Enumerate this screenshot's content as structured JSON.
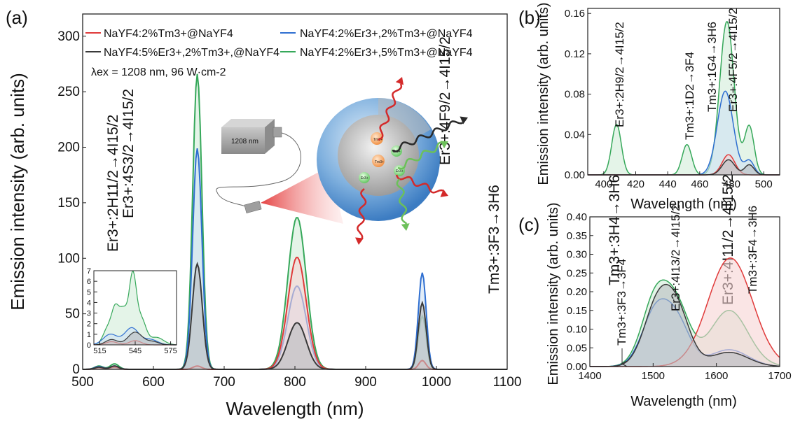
{
  "figure": {
    "panels": [
      {
        "id": "a",
        "label": "(a)"
      },
      {
        "id": "b",
        "label": "(b)"
      },
      {
        "id": "c",
        "label": "(c)"
      }
    ],
    "excitation_text": "λex = 1208 nm, 96 W·cm-2",
    "laser_label": "1208 nm",
    "ion_labels": [
      "Tm3+",
      "Er3+"
    ]
  },
  "series_meta": [
    {
      "key": "s1",
      "name": "NaYF4:2%Tm3+@NaYF4",
      "color": "#e03a3a",
      "fill": "#f7d3d3"
    },
    {
      "key": "s2",
      "name": "NaYF4:2%Er3+,2%Tm3+@NaYF4",
      "color": "#2f6fd1",
      "fill": "#cfe1f4"
    },
    {
      "key": "s3",
      "name": "NaYF4:5%Er3+,2%Tm3+,@NaYF4",
      "color": "#3a3a3a",
      "fill": "#b9bcc0"
    },
    {
      "key": "s4",
      "name": "NaYF4:2%Er3+,5%Tm3+@NaYF4",
      "color": "#36a85a",
      "fill": "#d2ecd8"
    }
  ],
  "chart_data": [
    {
      "panel": "a",
      "type": "area",
      "xlabel": "Wavelength (nm)",
      "ylabel": "Emission intensity (arb. units)",
      "xlim": [
        500,
        1100
      ],
      "ylim": [
        0,
        320
      ],
      "xticks": [
        500,
        600,
        700,
        800,
        900,
        1000,
        1100
      ],
      "yticks": [
        0,
        50,
        100,
        150,
        200,
        250,
        300
      ],
      "peaks": {
        "s1": [
          [
            523,
            1.5,
            6
          ],
          [
            545,
            2,
            6
          ],
          [
            662,
            3,
            6
          ],
          [
            803,
            101,
            13
          ],
          [
            980,
            8,
            5
          ]
        ],
        "s2": [
          [
            523,
            2.5,
            6
          ],
          [
            545,
            3,
            6
          ],
          [
            662,
            199,
            6.5
          ],
          [
            803,
            75,
            13
          ],
          [
            980,
            87,
            5.5
          ]
        ],
        "s3": [
          [
            523,
            2,
            6
          ],
          [
            545,
            3,
            6
          ],
          [
            662,
            95,
            7
          ],
          [
            803,
            42,
            13
          ],
          [
            980,
            60,
            5.5
          ]
        ],
        "s4": [
          [
            523,
            3,
            6
          ],
          [
            545,
            5,
            6
          ],
          [
            662,
            266,
            6.5
          ],
          [
            803,
            137,
            13
          ],
          [
            980,
            48,
            5.5
          ]
        ]
      },
      "annotations": [
        "Er3+:4F9/2→4I15/2",
        "Tm3+:3F3→3H6",
        "Tm3+:3H4→3H6",
        "Er3+:4I11/2→4I15/2",
        "Er3+:2H11/2→4I15/2",
        "Er3+:4S3/2→4I15/2"
      ]
    },
    {
      "panel": "a-inset",
      "type": "area",
      "xlim": [
        510,
        580
      ],
      "ylim": [
        0,
        7
      ],
      "xticks": [
        515,
        545,
        575
      ],
      "yticks": [
        0,
        1,
        2,
        3,
        4,
        5,
        6,
        7
      ],
      "peaks": {
        "s1": [
          [
            525,
            0.3,
            5
          ],
          [
            545,
            0.4,
            5
          ]
        ],
        "s2": [
          [
            524,
            1.0,
            6
          ],
          [
            542,
            1.6,
            6
          ],
          [
            558,
            0.5,
            6
          ]
        ],
        "s3": [
          [
            525,
            0.5,
            5
          ],
          [
            545,
            1.2,
            6
          ],
          [
            560,
            0.3,
            5
          ]
        ],
        "s4": [
          [
            522,
            1.6,
            4
          ],
          [
            528,
            2.6,
            3
          ],
          [
            535,
            3.3,
            4
          ],
          [
            543,
            6.0,
            3
          ],
          [
            550,
            2.4,
            4
          ],
          [
            563,
            0.7,
            6
          ]
        ]
      }
    },
    {
      "panel": "b",
      "type": "area",
      "xlabel": "Wavelength (nm)",
      "ylabel": "Emission intensity (arb. units)",
      "xlim": [
        390,
        510
      ],
      "ylim": [
        0,
        0.165
      ],
      "xticks": [
        400,
        420,
        440,
        460,
        480,
        500
      ],
      "yticks": [
        0.0,
        0.04,
        0.08,
        0.12,
        0.16
      ],
      "peaks": {
        "s1": [
          [
            478,
            0.02,
            4
          ]
        ],
        "s2": [
          [
            476,
            0.083,
            5
          ],
          [
            491,
            0.014,
            3
          ]
        ],
        "s3": [
          [
            478,
            0.015,
            4
          ],
          [
            491,
            0.01,
            3
          ]
        ],
        "s4": [
          [
            408,
            0.05,
            3
          ],
          [
            452,
            0.03,
            3
          ],
          [
            477,
            0.152,
            4.5
          ],
          [
            491,
            0.048,
            3
          ]
        ]
      },
      "annotations": [
        "Er3+:2H9/2→4I15/2",
        "Tm3+:1D2→3F4",
        "Tm3+:1G4→3H6",
        "Er3+:4F5/2→4I15/2"
      ]
    },
    {
      "panel": "c",
      "type": "area",
      "xlabel": "Wavelength (nm)",
      "ylabel": "Emission intensity (arb. units)",
      "xlim": [
        1400,
        1700
      ],
      "ylim": [
        0,
        0.4
      ],
      "xticks": [
        1400,
        1500,
        1600,
        1700
      ],
      "yticks": [
        0.0,
        0.05,
        0.1,
        0.15,
        0.2,
        0.25,
        0.3,
        0.35,
        0.4
      ],
      "peaks": {
        "s1": [
          [
            1622,
            0.29,
            35
          ]
        ],
        "s2": [
          [
            1505,
            0.15,
            22
          ],
          [
            1540,
            0.1,
            20
          ],
          [
            1620,
            0.045,
            30
          ]
        ],
        "s3": [
          [
            1508,
            0.17,
            22
          ],
          [
            1540,
            0.12,
            20
          ],
          [
            1620,
            0.038,
            30
          ]
        ],
        "s4": [
          [
            1505,
            0.19,
            22
          ],
          [
            1540,
            0.13,
            20
          ],
          [
            1620,
            0.15,
            30
          ]
        ]
      },
      "annotations": [
        "Tm3+:3F3→3F4",
        "Er3+:4I13/2→4I15/2",
        "Tm3+:3F4→3H6"
      ]
    }
  ]
}
